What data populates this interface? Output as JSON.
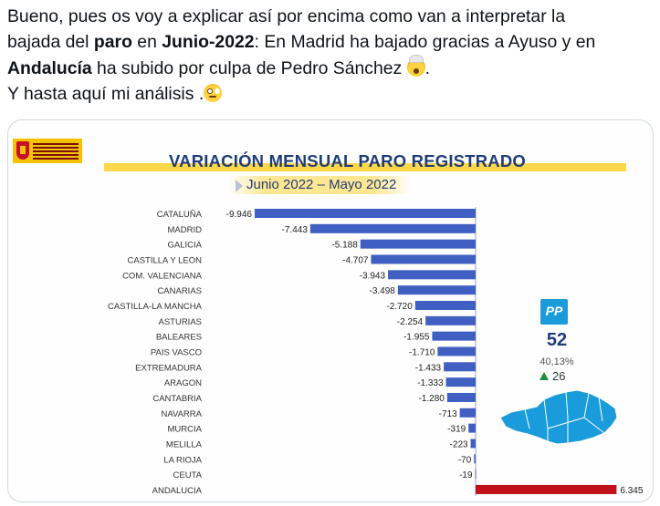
{
  "tweet": {
    "line1": "Bueno, pues os voy a explicar así por encima como van a interpretar la",
    "line2_a": "bajada del ",
    "line2_b": "paro",
    "line2_c": " en ",
    "line2_d": "Junio-2022",
    "line2_e": ": En Madrid ha bajado gracias a Ayuso y en",
    "line3_a": "Andalucía",
    "line3_b": " ha subido por culpa de Pedro Sánchez ",
    "line3_c": ".",
    "line4": "Y hasta aquí mi análisis .",
    "emoji1": "exploding-head-emoji",
    "emoji2": "face-with-rolling-eyes-emoji"
  },
  "image": {
    "logo": "spain-government-logo",
    "chart_title": "VARIACIÓN MENSUAL PARO REGISTRADO",
    "chart_subtitle": "Junio 2022 – Mayo 2022",
    "party_badge": "PP",
    "seats": "52",
    "vote_pct": "40,13%",
    "seat_delta": "26",
    "map": "andalucia-map",
    "colors": {
      "negative_bar": "#3f5fc2",
      "positive_bar": "#c0121b",
      "title_text": "#1f3d7a",
      "party_blue": "#1a9cdc"
    }
  },
  "chart_data": {
    "type": "bar",
    "orientation": "horizontal",
    "title": "VARIACIÓN MENSUAL PARO REGISTRADO",
    "subtitle": "Junio 2022 – Mayo 2022",
    "categories": [
      "CATALUÑA",
      "MADRID",
      "GALICIA",
      "CASTILLA Y LEON",
      "COM. VALENCIANA",
      "CANARIAS",
      "CASTILLA-LA MANCHA",
      "ASTURIAS",
      "BALEARES",
      "PAIS VASCO",
      "EXTREMADURA",
      "ARAGON",
      "CANTABRIA",
      "NAVARRA",
      "MURCIA",
      "MELILLA",
      "LA RIOJA",
      "CEUTA",
      "ANDALUCIA"
    ],
    "values": [
      -9946,
      -7443,
      -5188,
      -4707,
      -3943,
      -3498,
      -2720,
      -2254,
      -1955,
      -1710,
      -1433,
      -1333,
      -1280,
      -713,
      -319,
      -223,
      -70,
      -19,
      6345
    ],
    "value_labels": [
      "-9.946",
      "-7.443",
      "-5.188",
      "-4.707",
      "-3.943",
      "-3.498",
      "-2.720",
      "-2.254",
      "-1.955",
      "-1.710",
      "-1.433",
      "-1.333",
      "-1.280",
      "-713",
      "-319",
      "-223",
      "-70",
      "-19",
      "6.345"
    ]
  }
}
